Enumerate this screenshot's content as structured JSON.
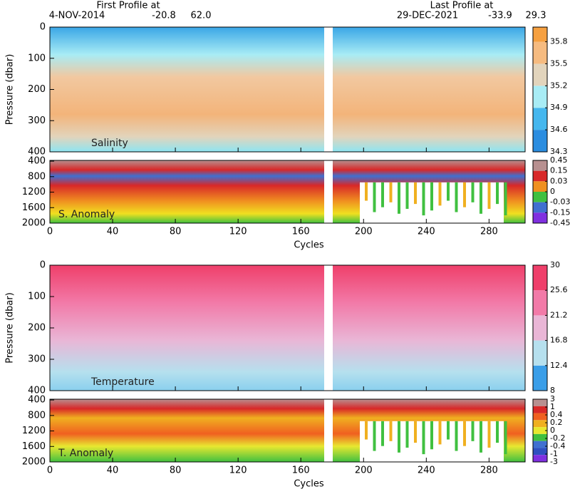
{
  "header": {
    "first_label": "First Profile at",
    "first_date": "4-NOV-2014",
    "first_lat": "-20.8",
    "first_lon": "62.0",
    "last_label": "Last Profile at",
    "last_date": "29-DEC-2021",
    "last_lat": "-33.9",
    "last_lon": "29.3"
  },
  "chart_data": [
    {
      "type": "heatmap",
      "title": "Salinity",
      "y_label": "Pressure (dbar)",
      "xlim": [
        0,
        303
      ],
      "ylim": [
        400,
        0
      ],
      "yticks": [
        0,
        100,
        200,
        300,
        400
      ],
      "colorbar": {
        "lim": [
          34.3,
          36.0
        ],
        "ticks": [
          34.3,
          34.6,
          34.9,
          35.2,
          35.5,
          35.8
        ],
        "colors": [
          "#2b8de0",
          "#45b7ee",
          "#a8ecf5",
          "#e2d4bc",
          "#f6bb80",
          "#f6a040"
        ]
      }
    },
    {
      "type": "heatmap",
      "title": "S. Anomaly",
      "x_label": "Cycles",
      "xlim": [
        0,
        303
      ],
      "ylim": [
        2000,
        380
      ],
      "yticks": [
        400,
        800,
        1200,
        1600,
        2000
      ],
      "xticks": [
        0,
        40,
        80,
        120,
        160,
        200,
        240,
        280
      ],
      "colorbar": {
        "levels": [
          0.45,
          0.15,
          0.03,
          0,
          -0.03,
          -0.15,
          -0.45
        ],
        "colors": [
          "#b89090",
          "#d82828",
          "#f09020",
          "#40c040",
          "#4070d0",
          "#8030e0"
        ]
      }
    },
    {
      "type": "heatmap",
      "title": "Temperature",
      "y_label": "Pressure (dbar)",
      "xlim": [
        0,
        303
      ],
      "ylim": [
        400,
        0
      ],
      "yticks": [
        0,
        100,
        200,
        300,
        400
      ],
      "colorbar": {
        "lim": [
          8,
          30
        ],
        "ticks": [
          8,
          12.4,
          16.8,
          21.2,
          25.6,
          30
        ],
        "colors": [
          "#3a9ee8",
          "#b6e0ee",
          "#e9b6d6",
          "#f27aa8",
          "#ef3f6a"
        ]
      }
    },
    {
      "type": "heatmap",
      "title": "T. Anomaly",
      "x_label": "Cycles",
      "xlim": [
        0,
        303
      ],
      "ylim": [
        2000,
        380
      ],
      "yticks": [
        400,
        800,
        1200,
        1600,
        2000
      ],
      "xticks": [
        0,
        40,
        80,
        120,
        160,
        200,
        240,
        280
      ],
      "colorbar": {
        "levels": [
          3,
          1,
          0.4,
          0.2,
          0,
          -0.2,
          -0.4,
          -1,
          -3
        ],
        "colors": [
          "#b89090",
          "#d82828",
          "#f06020",
          "#f0b020",
          "#e8e830",
          "#40c040",
          "#4070d0",
          "#3050c0",
          "#8030e0"
        ]
      }
    }
  ]
}
